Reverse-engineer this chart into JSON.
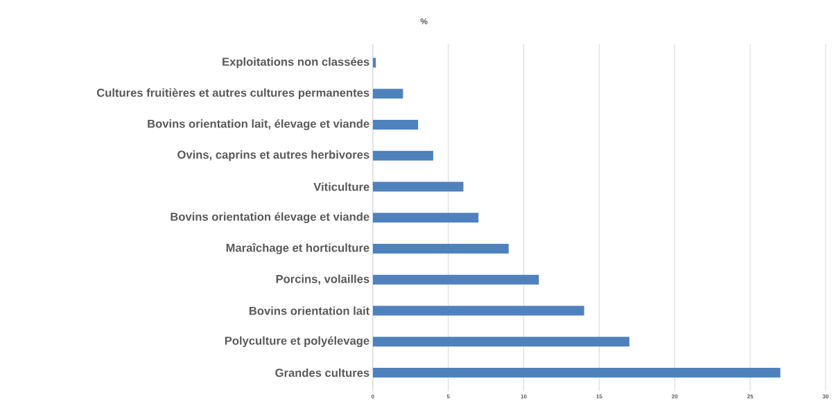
{
  "chart_data": {
    "type": "bar",
    "orientation": "horizontal",
    "title": "%",
    "categories": [
      "Exploitations non classées",
      "Cultures fruitières et autres cultures permanentes",
      "Bovins orientation lait, élevage et viande",
      "Ovins, caprins et autres herbivores",
      "Viticulture",
      "Bovins orientation élevage et viande",
      "Maraîchage et horticulture",
      "Porcins, volailles",
      "Bovins orientation lait",
      "Polyculture et polyélevage",
      "Grandes cultures"
    ],
    "values": [
      0.2,
      2,
      3,
      4,
      6,
      7,
      9,
      11,
      14,
      17,
      27
    ],
    "color": "#4f81bd",
    "xlim": [
      0,
      30
    ],
    "xticks": [
      0,
      5,
      10,
      15,
      20,
      25,
      30
    ],
    "grid": "x"
  }
}
